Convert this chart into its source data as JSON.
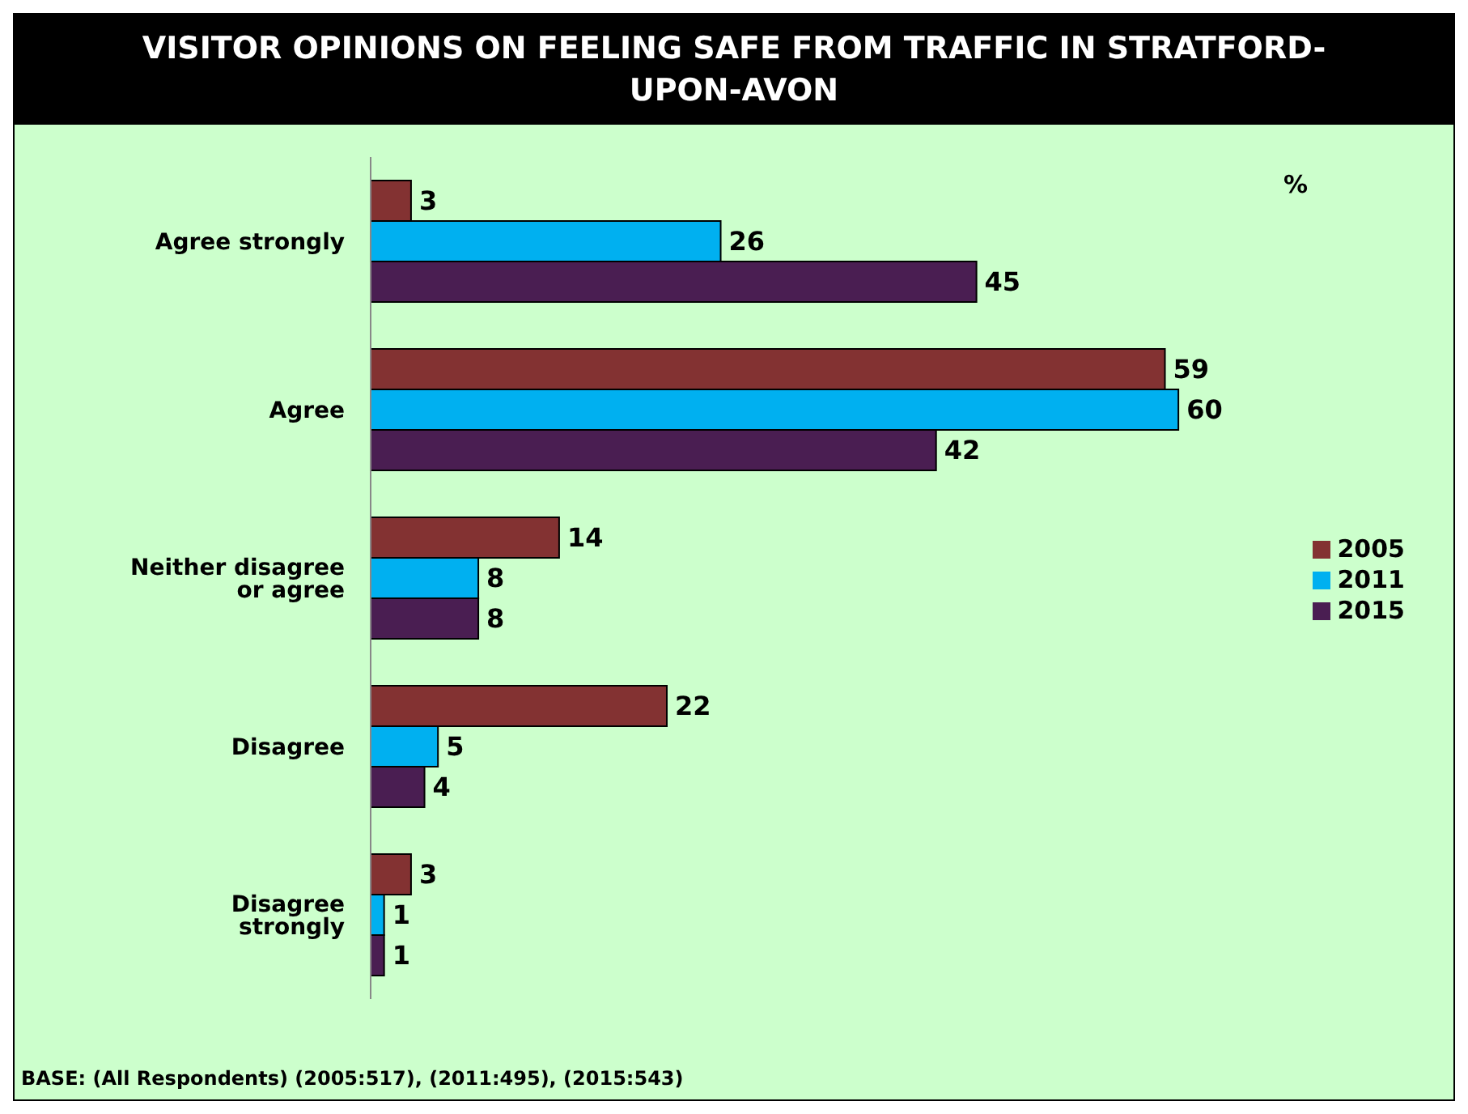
{
  "chart_data": {
    "type": "bar",
    "orientation": "horizontal",
    "title": "VISITOR OPINIONS ON FEELING SAFE FROM TRAFFIC IN STRATFORD-UPON-AVON",
    "categories": [
      "Agree strongly",
      "Agree",
      "Neither disagree or agree",
      "Disagree",
      "Disagree strongly"
    ],
    "series": [
      {
        "name": "2005",
        "color": "#833232",
        "values": [
          3,
          59,
          14,
          22,
          3
        ]
      },
      {
        "name": "2011",
        "color": "#00b0f0",
        "values": [
          26,
          60,
          8,
          5,
          1
        ]
      },
      {
        "name": "2015",
        "color": "#4a1e52",
        "values": [
          45,
          42,
          8,
          4,
          1
        ]
      }
    ],
    "data_labels": true,
    "legend": "right",
    "grid": false,
    "annotations": [
      "%",
      "BASE: (All Respondents) (2005:517), (2011:495), (2015:543)"
    ]
  }
}
